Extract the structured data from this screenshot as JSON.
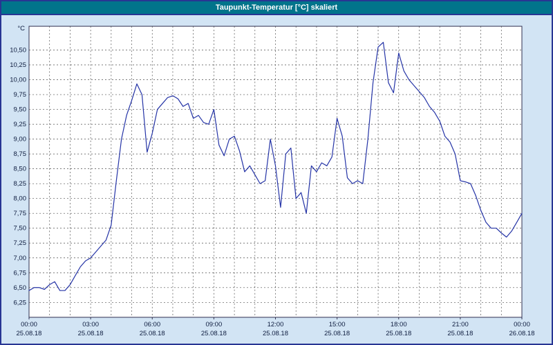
{
  "window": {
    "title": "Taupunkt-Temperatur [°C] skaliert"
  },
  "colors": {
    "window_bg": "#d2e4f4",
    "window_border": "#283593",
    "titlebar_bg": "#01748b",
    "titlebar_text": "#ffffff",
    "plot_bg": "#ffffff",
    "plot_border": "#2f2f4f",
    "grid": "#4d4d4d",
    "axis_text": "#0d1b3e",
    "series_line": "#2433a6"
  },
  "chart_data": {
    "type": "line",
    "title": "Taupunkt-Temperatur [°C] skaliert",
    "xlabel": "",
    "ylabel": "°C",
    "ylim": [
      6.0,
      10.9
    ],
    "xlim_hours": [
      0,
      24
    ],
    "grid": true,
    "legend": false,
    "minor_x_grid_step_hours": 1,
    "y_tick_values": [
      10.5,
      10.25,
      10.0,
      9.75,
      9.5,
      9.25,
      9.0,
      8.75,
      8.5,
      8.25,
      8.0,
      7.75,
      7.5,
      7.25,
      7.0,
      6.75,
      6.5,
      6.25
    ],
    "y_tick_labels": [
      "10,50",
      "10,25",
      "10,00",
      "9,75",
      "9,50",
      "9,25",
      "9,00",
      "8,75",
      "8,50",
      "8,25",
      "8,00",
      "7,75",
      "7,50",
      "7,25",
      "7,00",
      "6,75",
      "6,50",
      "6,25"
    ],
    "x_ticks": [
      {
        "hour": 0,
        "time": "00:00",
        "date": "25.08.18"
      },
      {
        "hour": 3,
        "time": "03:00",
        "date": "25.08.18"
      },
      {
        "hour": 6,
        "time": "06:00",
        "date": "25.08.18"
      },
      {
        "hour": 9,
        "time": "09:00",
        "date": "25.08.18"
      },
      {
        "hour": 12,
        "time": "12:00",
        "date": "25.08.18"
      },
      {
        "hour": 15,
        "time": "15:00",
        "date": "25.08.18"
      },
      {
        "hour": 18,
        "time": "18:00",
        "date": "25.08.18"
      },
      {
        "hour": 21,
        "time": "21:00",
        "date": "25.08.18"
      },
      {
        "hour": 24,
        "time": "00:00",
        "date": "26.08.18"
      }
    ],
    "series": [
      {
        "name": "Taupunkt-Temperatur",
        "x_hours": [
          0,
          0.25,
          0.5,
          0.75,
          1,
          1.25,
          1.5,
          1.75,
          2,
          2.25,
          2.5,
          2.75,
          3,
          3.25,
          3.5,
          3.75,
          4,
          4.25,
          4.5,
          4.75,
          5,
          5.25,
          5.5,
          5.75,
          6,
          6.25,
          6.5,
          6.75,
          7,
          7.25,
          7.5,
          7.75,
          8,
          8.25,
          8.5,
          8.75,
          9,
          9.25,
          9.5,
          9.75,
          10,
          10.25,
          10.5,
          10.75,
          11,
          11.25,
          11.5,
          11.75,
          12,
          12.25,
          12.5,
          12.75,
          13,
          13.25,
          13.5,
          13.75,
          14,
          14.25,
          14.5,
          14.75,
          15,
          15.25,
          15.5,
          15.75,
          16,
          16.25,
          16.5,
          16.75,
          17,
          17.25,
          17.5,
          17.75,
          18,
          18.25,
          18.5,
          18.75,
          19,
          19.25,
          19.5,
          19.75,
          20,
          20.25,
          20.5,
          20.75,
          21,
          21.25,
          21.5,
          21.75,
          22,
          22.25,
          22.5,
          22.75,
          23,
          23.25,
          23.5,
          23.75,
          24
        ],
        "y_celsius": [
          6.45,
          6.5,
          6.5,
          6.47,
          6.55,
          6.6,
          6.45,
          6.45,
          6.55,
          6.7,
          6.85,
          6.95,
          7.0,
          7.1,
          7.2,
          7.3,
          7.55,
          8.3,
          9.0,
          9.4,
          9.65,
          9.93,
          9.75,
          8.78,
          9.1,
          9.5,
          9.6,
          9.7,
          9.73,
          9.68,
          9.55,
          9.6,
          9.35,
          9.4,
          9.28,
          9.25,
          9.5,
          8.9,
          8.72,
          9.0,
          9.05,
          8.8,
          8.45,
          8.55,
          8.4,
          8.25,
          8.3,
          9.0,
          8.55,
          7.85,
          8.75,
          8.85,
          8.0,
          8.1,
          7.75,
          8.55,
          8.45,
          8.6,
          8.55,
          8.7,
          9.35,
          9.05,
          8.35,
          8.25,
          8.3,
          8.25,
          9.0,
          9.95,
          10.55,
          10.63,
          9.95,
          9.78,
          10.45,
          10.15,
          10.0,
          9.9,
          9.8,
          9.7,
          9.55,
          9.45,
          9.3,
          9.05,
          8.95,
          8.75,
          8.3,
          8.28,
          8.25,
          8.05,
          7.8,
          7.6,
          7.5,
          7.5,
          7.42,
          7.35,
          7.45,
          7.6,
          7.75
        ]
      }
    ]
  }
}
